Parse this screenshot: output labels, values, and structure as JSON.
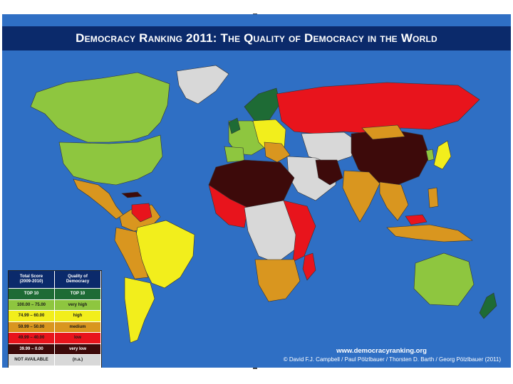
{
  "title": "Democracy Ranking 2011: The Quality of Democracy in the World",
  "colors": {
    "ocean": "#2f6fc4",
    "title_bar": "#0b2a6b",
    "top10": "#1e6b35",
    "very_high": "#8ec63f",
    "high": "#f2ee1c",
    "medium": "#d9961f",
    "low": "#e8141c",
    "very_low": "#3d0a0a",
    "not_available": "#d8d8d8"
  },
  "legend": {
    "header_score": "Total Score\n(2009-2010)",
    "header_quality": "Quality of\nDemocracy",
    "rows": [
      {
        "score": "TOP 10",
        "quality": "TOP 10",
        "color": "#1e6b35",
        "text": "#ffffff"
      },
      {
        "score": "100.00 – 75.00",
        "quality": "very high",
        "color": "#8ec63f",
        "text": "#1a1a1a"
      },
      {
        "score": "74.99 – 60.00",
        "quality": "high",
        "color": "#f2ee1c",
        "text": "#1a1a1a"
      },
      {
        "score": "59.99 – 50.00",
        "quality": "medium",
        "color": "#d9961f",
        "text": "#1a1a1a"
      },
      {
        "score": "49.99 – 40.00",
        "quality": "low",
        "color": "#e8141c",
        "text": "#1a1a1a"
      },
      {
        "score": "39.99 – 0.00",
        "quality": "very low",
        "color": "#3d0a0a",
        "text": "#ffffff"
      },
      {
        "score": "NOT AVAILABLE",
        "quality": "(n.a.)",
        "color": "#d8d8d8",
        "text": "#1a1a1a"
      }
    ]
  },
  "credits": {
    "url": "www.democracyranking.org",
    "authors": "© David F.J. Campbell / Paul Pölzlbauer / Thorsten D. Barth / Georg Pölzlbauer (2011)"
  }
}
